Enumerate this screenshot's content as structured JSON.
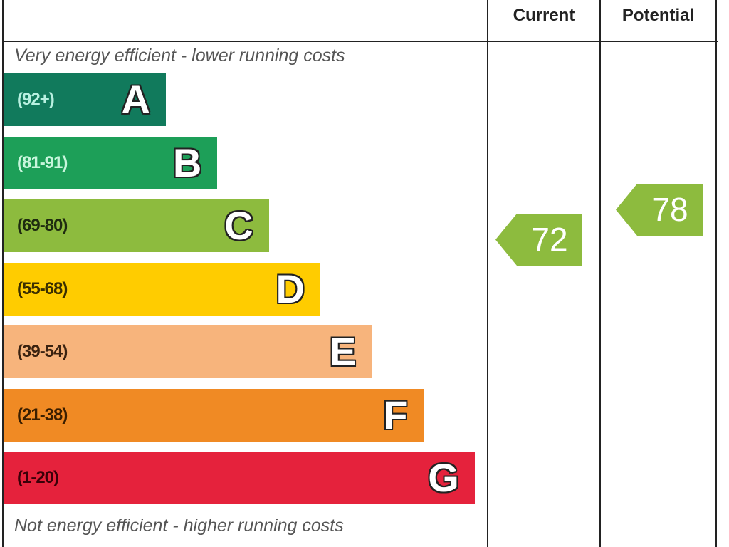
{
  "header": {
    "current_label": "Current",
    "potential_label": "Potential"
  },
  "top_caption": "Very energy efficient - lower running costs",
  "bottom_caption": "Not energy efficient - higher running costs",
  "chart_data": {
    "type": "bar",
    "bands": [
      {
        "letter": "A",
        "range": "(92+)",
        "color": "#117a5c",
        "text_color": "#b8f0e0"
      },
      {
        "letter": "B",
        "range": "(81-91)",
        "color": "#1d9f58",
        "text_color": "#c8f5dc"
      },
      {
        "letter": "C",
        "range": "(69-80)",
        "color": "#8dbb3e",
        "text_color": "#1e2a10"
      },
      {
        "letter": "D",
        "range": "(55-68)",
        "color": "#ffcc00",
        "text_color": "#3a2e00"
      },
      {
        "letter": "E",
        "range": "(39-54)",
        "color": "#f7b47c",
        "text_color": "#3a2210"
      },
      {
        "letter": "F",
        "range": "(21-38)",
        "color": "#f08a24",
        "text_color": "#3a1e00"
      },
      {
        "letter": "G",
        "range": "(1-20)",
        "color": "#e5223c",
        "text_color": "#3a0008"
      }
    ],
    "current": {
      "value": 72,
      "color": "#8dbb3e"
    },
    "potential": {
      "value": 78,
      "color": "#8dbb3e"
    }
  }
}
